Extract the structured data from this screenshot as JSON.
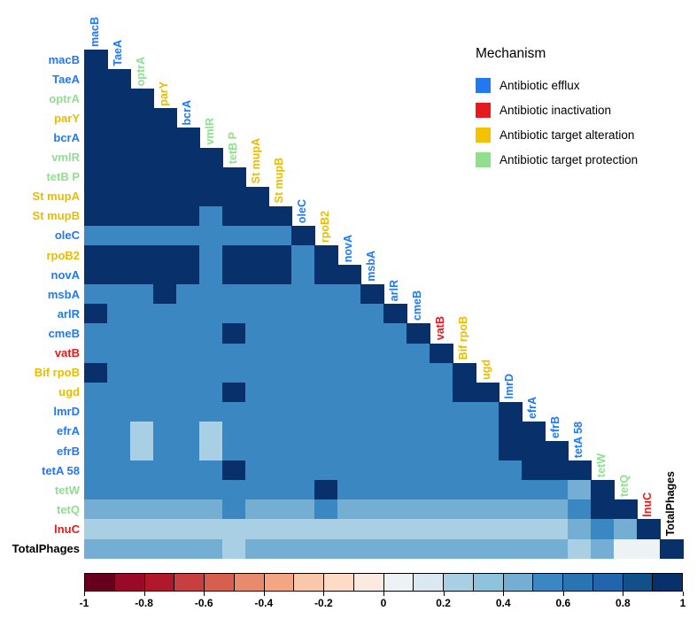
{
  "chart_data": {
    "type": "heatmap",
    "subtype": "lower-triangle-correlation-matrix",
    "legend_title": "Mechanism",
    "legend": [
      {
        "label": "Antibiotic efflux",
        "color": "#2278F0",
        "mechanism": "efflux"
      },
      {
        "label": "Antibiotic inactivation",
        "color": "#E41A1C",
        "mechanism": "inactivation"
      },
      {
        "label": "Antibiotic target alteration",
        "color": "#F3C300",
        "mechanism": "alteration"
      },
      {
        "label": "Antibiotic target protection",
        "color": "#8FDF8F",
        "mechanism": "protection"
      }
    ],
    "mechanism_colors": {
      "efflux": "#2278F0",
      "inactivation": "#E41A1C",
      "alteration": "#E8BC00",
      "protection": "#8FDF8F",
      "none": "#000000"
    },
    "labels": [
      "macB",
      "TaeA",
      "optrA",
      "parY",
      "bcrA",
      "vmlR",
      "tetB P",
      "St mupA",
      "St mupB",
      "oleC",
      "rpoB2",
      "novA",
      "msbA",
      "arlR",
      "cmeB",
      "vatB",
      "Bif rpoB",
      "ugd",
      "lmrD",
      "efrA",
      "efrB",
      "tetA 58",
      "tetW",
      "tetQ",
      "lnuC",
      "TotalPhages"
    ],
    "label_mechanisms": [
      "efflux",
      "efflux",
      "protection",
      "alteration",
      "efflux",
      "protection",
      "protection",
      "alteration",
      "alteration",
      "efflux",
      "alteration",
      "efflux",
      "efflux",
      "efflux",
      "efflux",
      "inactivation",
      "alteration",
      "alteration",
      "efflux",
      "efflux",
      "efflux",
      "efflux",
      "protection",
      "protection",
      "inactivation",
      "none"
    ],
    "diagonal_included": true,
    "matrix": [
      [
        1
      ],
      [
        0.9,
        1
      ],
      [
        0.9,
        0.9,
        1
      ],
      [
        0.9,
        0.9,
        0.9,
        1
      ],
      [
        0.9,
        0.9,
        0.9,
        0.9,
        1
      ],
      [
        0.9,
        0.9,
        0.9,
        0.9,
        0.9,
        1
      ],
      [
        0.9,
        0.9,
        0.9,
        0.9,
        0.9,
        0.9,
        1
      ],
      [
        0.9,
        0.9,
        0.9,
        0.9,
        0.9,
        0.9,
        0.9,
        1
      ],
      [
        0.9,
        0.9,
        0.9,
        0.9,
        0.9,
        0.55,
        0.9,
        0.9,
        1
      ],
      [
        0.55,
        0.55,
        0.55,
        0.55,
        0.55,
        0.55,
        0.55,
        0.55,
        0.55,
        1
      ],
      [
        0.9,
        0.9,
        0.9,
        0.9,
        0.9,
        0.55,
        0.9,
        0.9,
        0.9,
        0.55,
        1
      ],
      [
        0.9,
        0.9,
        0.9,
        0.9,
        0.9,
        0.55,
        0.9,
        0.9,
        0.9,
        0.55,
        0.9,
        1
      ],
      [
        0.55,
        0.55,
        0.55,
        0.9,
        0.55,
        0.55,
        0.55,
        0.55,
        0.55,
        0.55,
        0.55,
        0.55,
        1
      ],
      [
        0.9,
        0.55,
        0.55,
        0.55,
        0.55,
        0.55,
        0.55,
        0.55,
        0.55,
        0.55,
        0.55,
        0.55,
        0.55,
        1
      ],
      [
        0.55,
        0.55,
        0.55,
        0.55,
        0.55,
        0.55,
        0.9,
        0.55,
        0.55,
        0.55,
        0.55,
        0.55,
        0.55,
        0.55,
        1
      ],
      [
        0.55,
        0.55,
        0.55,
        0.55,
        0.55,
        0.55,
        0.55,
        0.55,
        0.55,
        0.55,
        0.55,
        0.55,
        0.55,
        0.55,
        0.55,
        1
      ],
      [
        0.9,
        0.55,
        0.55,
        0.55,
        0.55,
        0.55,
        0.55,
        0.55,
        0.55,
        0.55,
        0.55,
        0.55,
        0.55,
        0.55,
        0.55,
        0.55,
        1
      ],
      [
        0.55,
        0.55,
        0.55,
        0.55,
        0.55,
        0.55,
        0.9,
        0.55,
        0.55,
        0.55,
        0.55,
        0.55,
        0.55,
        0.55,
        0.55,
        0.55,
        0.9,
        1
      ],
      [
        0.55,
        0.55,
        0.55,
        0.55,
        0.55,
        0.55,
        0.55,
        0.55,
        0.55,
        0.55,
        0.55,
        0.55,
        0.55,
        0.55,
        0.55,
        0.55,
        0.55,
        0.55,
        1
      ],
      [
        0.55,
        0.55,
        0.25,
        0.55,
        0.55,
        0.25,
        0.55,
        0.55,
        0.55,
        0.55,
        0.55,
        0.55,
        0.55,
        0.55,
        0.55,
        0.55,
        0.55,
        0.55,
        0.9,
        1
      ],
      [
        0.55,
        0.55,
        0.25,
        0.55,
        0.55,
        0.25,
        0.55,
        0.55,
        0.55,
        0.55,
        0.55,
        0.55,
        0.55,
        0.55,
        0.55,
        0.55,
        0.55,
        0.55,
        0.9,
        0.9,
        1
      ],
      [
        0.55,
        0.55,
        0.55,
        0.55,
        0.55,
        0.55,
        0.9,
        0.55,
        0.55,
        0.55,
        0.55,
        0.55,
        0.55,
        0.55,
        0.55,
        0.55,
        0.55,
        0.55,
        0.55,
        0.9,
        0.9,
        1
      ],
      [
        0.55,
        0.55,
        0.55,
        0.55,
        0.55,
        0.55,
        0.55,
        0.55,
        0.55,
        0.55,
        0.9,
        0.55,
        0.55,
        0.55,
        0.55,
        0.55,
        0.55,
        0.55,
        0.55,
        0.55,
        0.55,
        0.4,
        1
      ],
      [
        0.4,
        0.4,
        0.4,
        0.4,
        0.4,
        0.4,
        0.55,
        0.4,
        0.4,
        0.4,
        0.55,
        0.4,
        0.4,
        0.4,
        0.4,
        0.4,
        0.4,
        0.4,
        0.4,
        0.4,
        0.4,
        0.55,
        0.9,
        1
      ],
      [
        0.25,
        0.25,
        0.25,
        0.25,
        0.25,
        0.25,
        0.25,
        0.25,
        0.25,
        0.25,
        0.25,
        0.25,
        0.25,
        0.25,
        0.25,
        0.25,
        0.25,
        0.25,
        0.25,
        0.25,
        0.25,
        0.4,
        0.55,
        0.4,
        1
      ],
      [
        0.4,
        0.4,
        0.4,
        0.4,
        0.4,
        0.4,
        0.25,
        0.4,
        0.4,
        0.4,
        0.4,
        0.4,
        0.4,
        0.4,
        0.4,
        0.4,
        0.4,
        0.4,
        0.4,
        0.4,
        0.4,
        0.25,
        0.4,
        0.05,
        0.05,
        1
      ]
    ],
    "colorbar": {
      "min": -1,
      "max": 1,
      "ticks": [
        -1,
        -0.8,
        -0.6,
        -0.4,
        -0.2,
        0,
        0.2,
        0.4,
        0.6,
        0.8,
        1
      ],
      "segments": [
        "#67001f",
        "#980a27",
        "#b2182b",
        "#c73f3f",
        "#d6604d",
        "#e98a6d",
        "#f4a582",
        "#f9c8ab",
        "#fddbc7",
        "#faeae2",
        "#edf2f5",
        "#d9e8f1",
        "#a9cfe5",
        "#8ec3de",
        "#74afd3",
        "#3b87c1",
        "#2b74b2",
        "#2166ac",
        "#12508c",
        "#08306b"
      ]
    }
  }
}
